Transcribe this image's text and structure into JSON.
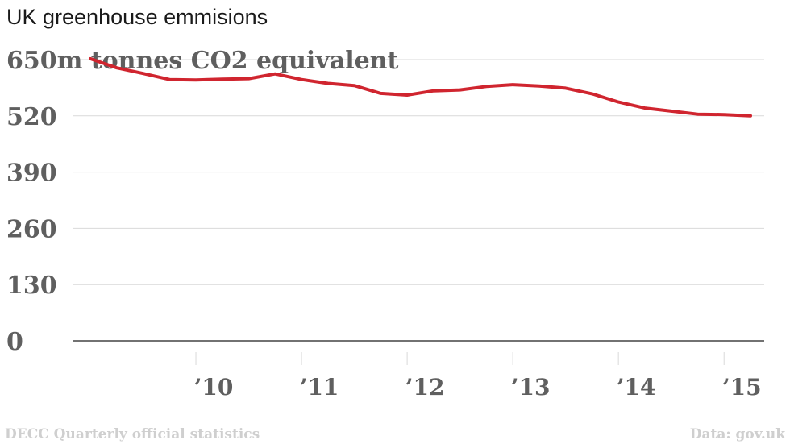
{
  "title": "UK greenhouse emmisions",
  "footer": {
    "source_left": "DECC Quarterly official statistics",
    "source_right": "Data: gov.uk"
  },
  "colors": {
    "line": "#d0252f",
    "grid": "#d9d9d9",
    "axis": "#444444",
    "tick_text": "#5f5f5f"
  },
  "chart_data": {
    "type": "line",
    "title": "UK greenhouse emmisions",
    "ylabel": "650m tonnes CO2 equivalent",
    "ylim": [
      0,
      650
    ],
    "yticks": [
      0,
      130,
      260,
      390,
      520
    ],
    "ytick_labels": [
      "0",
      "130",
      "260",
      "390",
      "520"
    ],
    "top_tick_label": "650m tonnes CO2 equivalent",
    "xlim": [
      2009.0,
      2015.38
    ],
    "xticks": [
      2010,
      2011,
      2012,
      2013,
      2014,
      2015
    ],
    "xtick_labels": [
      "’10",
      "’11",
      "’12",
      "’13",
      "’14",
      "’15"
    ],
    "grid": true,
    "series": [
      {
        "x": [
          2009.0,
          2009.25,
          2009.5,
          2009.75,
          2010.0,
          2010.25,
          2010.5,
          2010.75,
          2011.0,
          2011.25,
          2011.5,
          2011.75,
          2012.0,
          2012.25,
          2012.5,
          2012.75,
          2013.0,
          2013.25,
          2013.5,
          2013.75,
          2014.0,
          2014.25,
          2014.5,
          2014.75,
          2015.0,
          2015.25
        ],
        "values": [
          652,
          631,
          618,
          604,
          603,
          605,
          606,
          617,
          604,
          595,
          590,
          572,
          568,
          578,
          580,
          588,
          592,
          589,
          584,
          571,
          552,
          538,
          531,
          524,
          523,
          520
        ]
      }
    ]
  }
}
